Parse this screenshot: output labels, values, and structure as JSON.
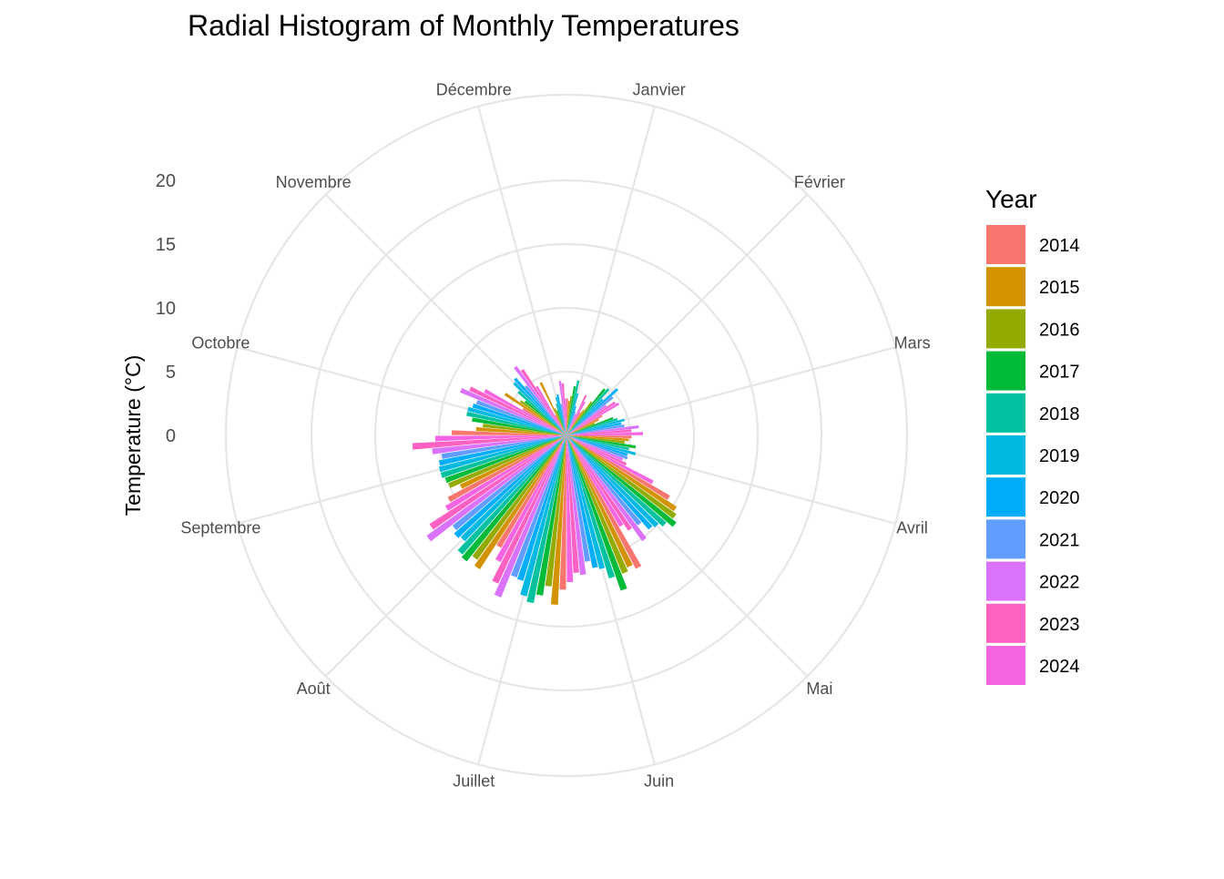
{
  "chart_data": {
    "type": "bar",
    "coord": "polar",
    "title": "Radial Histogram of Monthly Temperatures",
    "ylabel": "Temperature (°C)",
    "xlabel": "",
    "ylim": [
      0,
      20
    ],
    "radial_ticks": [
      "0",
      "5",
      "10",
      "15",
      "20"
    ],
    "radial_tick_values": [
      0,
      5,
      10,
      15,
      20
    ],
    "grid": true,
    "legend_title": "Year",
    "legend_position": "right",
    "categories": [
      "Janvier",
      "Février",
      "Mars",
      "Avril",
      "Mai",
      "Juin",
      "Juillet",
      "Août",
      "Septembre",
      "Octobre",
      "Novembre",
      "Décembre"
    ],
    "series": [
      {
        "name": "2014",
        "color": "#F8766D",
        "values": [
          2.9,
          2.1,
          3.2,
          5.1,
          9.4,
          11.8,
          12.1,
          10.2,
          10.5,
          9.0,
          4.0,
          1.8
        ]
      },
      {
        "name": "2015",
        "color": "#D39200",
        "values": [
          2.7,
          2.4,
          2.8,
          4.9,
          10.3,
          11.4,
          13.3,
          12.5,
          9.2,
          7.1,
          5.8,
          4.6
        ]
      },
      {
        "name": "2016",
        "color": "#93AA00",
        "values": [
          3.1,
          3.3,
          2.4,
          4.6,
          10.6,
          11.7,
          11.9,
          12.0,
          10.0,
          6.6,
          4.5,
          2.3
        ]
      },
      {
        "name": "2017",
        "color": "#00BA38",
        "values": [
          3.9,
          4.7,
          3.9,
          5.5,
          11.0,
          12.9,
          12.7,
          12.6,
          10.1,
          7.5,
          4.2,
          2.1
        ]
      },
      {
        "name": "2018",
        "color": "#00C19F",
        "values": [
          4.4,
          4.9,
          4.2,
          5.0,
          10.4,
          11.7,
          13.4,
          12.4,
          10.3,
          8.0,
          5.1,
          2.6
        ]
      },
      {
        "name": "2019",
        "color": "#00B9E3",
        "values": [
          3.4,
          4.0,
          4.7,
          5.6,
          10.0,
          10.8,
          13.0,
          11.5,
          10.3,
          8.0,
          5.8,
          3.1
        ]
      },
      {
        "name": "2020",
        "color": "#00ADFA",
        "values": [
          2.4,
          5.4,
          4.4,
          5.0,
          9.8,
          10.6,
          11.9,
          11.7,
          10.2,
          7.7,
          6.0,
          3.3
        ]
      },
      {
        "name": "2021",
        "color": "#619CFF",
        "values": [
          2.0,
          4.7,
          4.6,
          5.1,
          9.0,
          10.0,
          11.8,
          11.4,
          9.9,
          7.5,
          5.0,
          2.5
        ]
      },
      {
        "name": "2022",
        "color": "#DB72FB",
        "values": [
          1.8,
          3.9,
          5.7,
          4.8,
          10.2,
          11.0,
          13.7,
          13.5,
          10.6,
          9.0,
          6.7,
          4.3
        ]
      },
      {
        "name": "2023",
        "color": "#FF61C3",
        "values": [
          3.5,
          4.6,
          5.1,
          5.2,
          8.9,
          10.8,
          12.8,
          12.8,
          12.1,
          8.4,
          6.2,
          4.1
        ]
      },
      {
        "name": "2024",
        "color": "#F564E3",
        "values": [
          3.0,
          4.8,
          6.0,
          7.7,
          8.3,
          11.5,
          11.2,
          11.0,
          10.3,
          7.3,
          4.5,
          2.9
        ]
      }
    ]
  }
}
